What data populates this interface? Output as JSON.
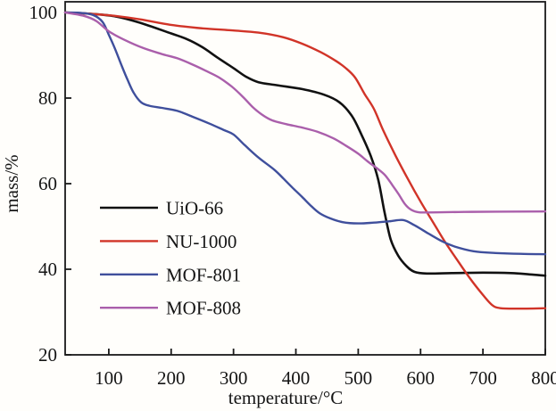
{
  "chart_data": {
    "type": "line",
    "title": "",
    "xlabel": "temperature/°C",
    "ylabel": "mass/%",
    "xlim": [
      30,
      800
    ],
    "ylim": [
      20,
      102.5
    ],
    "x_ticks": [
      100,
      200,
      300,
      400,
      500,
      600,
      700,
      800
    ],
    "y_ticks": [
      20,
      40,
      60,
      80,
      100
    ],
    "grid": false,
    "legend_position": "inside-middle-left",
    "colors": {
      "axis": "#1a1a1a",
      "background": "#fffefb"
    },
    "series": [
      {
        "name": "UiO-66",
        "color": "#111111",
        "stroke_width": 2.6,
        "points": [
          [
            30,
            100
          ],
          [
            70,
            99.7
          ],
          [
            110,
            99.1
          ],
          [
            150,
            97.6
          ],
          [
            200,
            95.1
          ],
          [
            225,
            93.8
          ],
          [
            250,
            91.9
          ],
          [
            275,
            89.4
          ],
          [
            300,
            87.0
          ],
          [
            320,
            85.0
          ],
          [
            340,
            83.7
          ],
          [
            370,
            83.0
          ],
          [
            410,
            82.1
          ],
          [
            445,
            80.8
          ],
          [
            470,
            79.0
          ],
          [
            490,
            75.8
          ],
          [
            505,
            71.5
          ],
          [
            520,
            66.5
          ],
          [
            532,
            61.0
          ],
          [
            542,
            53.5
          ],
          [
            552,
            47.0
          ],
          [
            564,
            43.2
          ],
          [
            577,
            40.8
          ],
          [
            590,
            39.4
          ],
          [
            610,
            39.0
          ],
          [
            650,
            39.1
          ],
          [
            700,
            39.2
          ],
          [
            745,
            39.1
          ],
          [
            775,
            38.8
          ],
          [
            800,
            38.5
          ]
        ]
      },
      {
        "name": "NU-1000",
        "color": "#d13428",
        "stroke_width": 2.4,
        "points": [
          [
            30,
            100
          ],
          [
            70,
            99.7
          ],
          [
            110,
            99.2
          ],
          [
            150,
            98.4
          ],
          [
            200,
            97.1
          ],
          [
            250,
            96.3
          ],
          [
            300,
            95.8
          ],
          [
            340,
            95.3
          ],
          [
            380,
            94.2
          ],
          [
            410,
            92.7
          ],
          [
            440,
            90.7
          ],
          [
            465,
            88.6
          ],
          [
            480,
            87.0
          ],
          [
            495,
            84.8
          ],
          [
            510,
            81.0
          ],
          [
            525,
            77.5
          ],
          [
            540,
            72.5
          ],
          [
            560,
            66.5
          ],
          [
            580,
            61.0
          ],
          [
            600,
            55.8
          ],
          [
            620,
            51.0
          ],
          [
            640,
            46.2
          ],
          [
            660,
            41.9
          ],
          [
            680,
            37.7
          ],
          [
            700,
            34.0
          ],
          [
            715,
            31.6
          ],
          [
            728,
            30.9
          ],
          [
            755,
            30.8
          ],
          [
            800,
            30.9
          ]
        ]
      },
      {
        "name": "MOF-801",
        "color": "#3f4f9c",
        "stroke_width": 2.4,
        "points": [
          [
            30,
            100
          ],
          [
            55,
            99.9
          ],
          [
            75,
            99.4
          ],
          [
            90,
            97.8
          ],
          [
            100,
            94.8
          ],
          [
            110,
            91.5
          ],
          [
            120,
            87.8
          ],
          [
            130,
            84.3
          ],
          [
            140,
            81.2
          ],
          [
            152,
            79.0
          ],
          [
            165,
            78.2
          ],
          [
            185,
            77.7
          ],
          [
            210,
            77.0
          ],
          [
            235,
            75.6
          ],
          [
            262,
            74.0
          ],
          [
            285,
            72.5
          ],
          [
            300,
            71.5
          ],
          [
            318,
            69.0
          ],
          [
            340,
            66.1
          ],
          [
            365,
            63.3
          ],
          [
            380,
            61.2
          ],
          [
            395,
            59.0
          ],
          [
            410,
            56.9
          ],
          [
            425,
            54.7
          ],
          [
            438,
            53.1
          ],
          [
            455,
            51.9
          ],
          [
            475,
            51.0
          ],
          [
            500,
            50.7
          ],
          [
            525,
            50.9
          ],
          [
            550,
            51.2
          ],
          [
            572,
            51.5
          ],
          [
            590,
            50.3
          ],
          [
            612,
            48.4
          ],
          [
            635,
            46.5
          ],
          [
            655,
            45.3
          ],
          [
            685,
            44.2
          ],
          [
            720,
            43.8
          ],
          [
            760,
            43.6
          ],
          [
            800,
            43.5
          ]
        ]
      },
      {
        "name": "MOF-808",
        "color": "#aa5fab",
        "stroke_width": 2.4,
        "points": [
          [
            30,
            100
          ],
          [
            60,
            99.2
          ],
          [
            80,
            98.0
          ],
          [
            100,
            95.6
          ],
          [
            125,
            93.6
          ],
          [
            155,
            91.7
          ],
          [
            185,
            90.3
          ],
          [
            210,
            89.3
          ],
          [
            235,
            87.8
          ],
          [
            258,
            86.2
          ],
          [
            277,
            84.8
          ],
          [
            297,
            82.7
          ],
          [
            315,
            80.3
          ],
          [
            330,
            78.0
          ],
          [
            345,
            76.2
          ],
          [
            362,
            74.8
          ],
          [
            385,
            73.9
          ],
          [
            410,
            73.1
          ],
          [
            435,
            72.1
          ],
          [
            460,
            70.6
          ],
          [
            480,
            68.9
          ],
          [
            500,
            67.0
          ],
          [
            515,
            65.2
          ],
          [
            530,
            63.6
          ],
          [
            543,
            62.0
          ],
          [
            555,
            59.6
          ],
          [
            565,
            57.5
          ],
          [
            575,
            55.2
          ],
          [
            585,
            53.9
          ],
          [
            598,
            53.3
          ],
          [
            625,
            53.3
          ],
          [
            670,
            53.4
          ],
          [
            720,
            53.45
          ],
          [
            800,
            53.5
          ]
        ]
      }
    ]
  }
}
